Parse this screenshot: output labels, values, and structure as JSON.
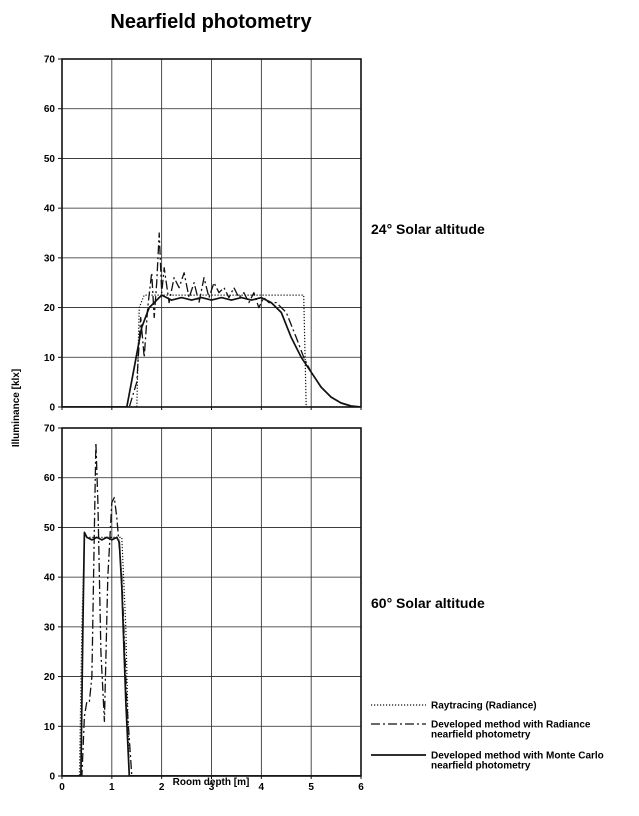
{
  "title": "Nearfield photometry",
  "ylabel": "Illuminance [klx]",
  "xlabel": "Room depth  [m]",
  "legend": [
    {
      "lines": [
        "Raytracing (Radiance)"
      ],
      "style": "dotted"
    },
    {
      "lines": [
        "Developed method with Radiance",
        "nearfield photometry"
      ],
      "style": "dashdot"
    },
    {
      "lines": [
        "Developed method with Monte Carlo",
        "nearfield photometry"
      ],
      "style": "solid"
    }
  ],
  "chart_data": [
    {
      "type": "line",
      "label": "24° Solar altitude",
      "xlim": [
        0,
        6
      ],
      "ylim": [
        0,
        70
      ],
      "xticks": [
        0,
        1,
        2,
        3,
        4,
        5,
        6
      ],
      "yticks": [
        0,
        10,
        20,
        30,
        40,
        50,
        60,
        70
      ],
      "grid": true,
      "series": [
        {
          "name": "Raytracing (Radiance)",
          "style": "dotted",
          "x": [
            0,
            1.5,
            1.55,
            1.65,
            4.85,
            4.9,
            6
          ],
          "y": [
            0,
            0,
            20,
            22.5,
            22.5,
            0,
            0
          ]
        },
        {
          "name": "Developed method with Radiance nearfield photometry",
          "style": "dashdot",
          "x": [
            0,
            1.35,
            1.5,
            1.58,
            1.65,
            1.72,
            1.8,
            1.85,
            1.9,
            1.95,
            2.0,
            2.05,
            2.15,
            2.25,
            2.35,
            2.45,
            2.55,
            2.65,
            2.75,
            2.85,
            2.95,
            3.05,
            3.15,
            3.25,
            3.35,
            3.45,
            3.55,
            3.65,
            3.75,
            3.85,
            3.95,
            4.05,
            4.15,
            4.3,
            4.5,
            4.7,
            4.85,
            5.0,
            5.2,
            5.4,
            5.6,
            5.8,
            6
          ],
          "y": [
            0,
            0,
            5,
            18,
            10,
            20,
            27,
            18,
            25,
            35,
            23,
            28,
            21,
            26,
            24,
            27,
            22,
            25,
            21,
            26,
            22,
            25,
            23,
            24,
            22,
            24,
            22,
            23,
            21,
            23,
            20,
            22,
            21,
            21,
            19,
            14,
            10,
            7,
            4,
            2,
            0.8,
            0.2,
            0
          ]
        },
        {
          "name": "Developed method with Monte Carlo nearfield photometry",
          "style": "solid",
          "x": [
            0,
            1.3,
            1.45,
            1.6,
            1.75,
            1.9,
            2.0,
            2.2,
            2.4,
            2.6,
            2.8,
            3.0,
            3.2,
            3.4,
            3.6,
            3.8,
            4.0,
            4.2,
            4.4,
            4.6,
            4.8,
            5.0,
            5.2,
            5.4,
            5.6,
            5.8,
            6
          ],
          "y": [
            0,
            0,
            8,
            16,
            20,
            21.5,
            22.5,
            21.5,
            22,
            21.5,
            22,
            21.5,
            22,
            21.5,
            22,
            21.5,
            22,
            21,
            19,
            14,
            10,
            7,
            4,
            2,
            0.8,
            0.2,
            0
          ]
        }
      ]
    },
    {
      "type": "line",
      "label": "60° Solar altitude",
      "xlim": [
        0,
        6
      ],
      "ylim": [
        0,
        70
      ],
      "xticks": [
        0,
        1,
        2,
        3,
        4,
        5,
        6
      ],
      "yticks": [
        0,
        10,
        20,
        30,
        40,
        50,
        60,
        70
      ],
      "grid": true,
      "series": [
        {
          "name": "Raytracing (Radiance)",
          "style": "dotted",
          "x": [
            0,
            0.35,
            0.4,
            0.45,
            1.2,
            1.28,
            1.35,
            6
          ],
          "y": [
            0,
            0,
            30,
            48,
            48,
            30,
            0,
            0
          ]
        },
        {
          "name": "Developed method with Radiance nearfield photometry",
          "style": "dashdot",
          "x": [
            0,
            0.4,
            0.45,
            0.5,
            0.55,
            0.6,
            0.65,
            0.68,
            0.72,
            0.78,
            0.85,
            0.92,
            1.0,
            1.05,
            1.1,
            1.2,
            1.3,
            1.4,
            6
          ],
          "y": [
            0,
            0,
            12,
            15,
            15,
            20,
            50,
            67,
            55,
            25,
            11,
            40,
            55,
            56,
            52,
            40,
            15,
            0,
            0
          ]
        },
        {
          "name": "Developed method with Monte Carlo nearfield photometry",
          "style": "solid",
          "x": [
            0,
            0.38,
            0.42,
            0.45,
            0.5,
            0.6,
            0.7,
            0.8,
            0.9,
            1.0,
            1.1,
            1.15,
            1.2,
            1.28,
            1.35,
            6
          ],
          "y": [
            0,
            0,
            30,
            49,
            48,
            47.5,
            48,
            47.5,
            48,
            47.5,
            48,
            47,
            38,
            15,
            0,
            0
          ]
        }
      ]
    }
  ]
}
